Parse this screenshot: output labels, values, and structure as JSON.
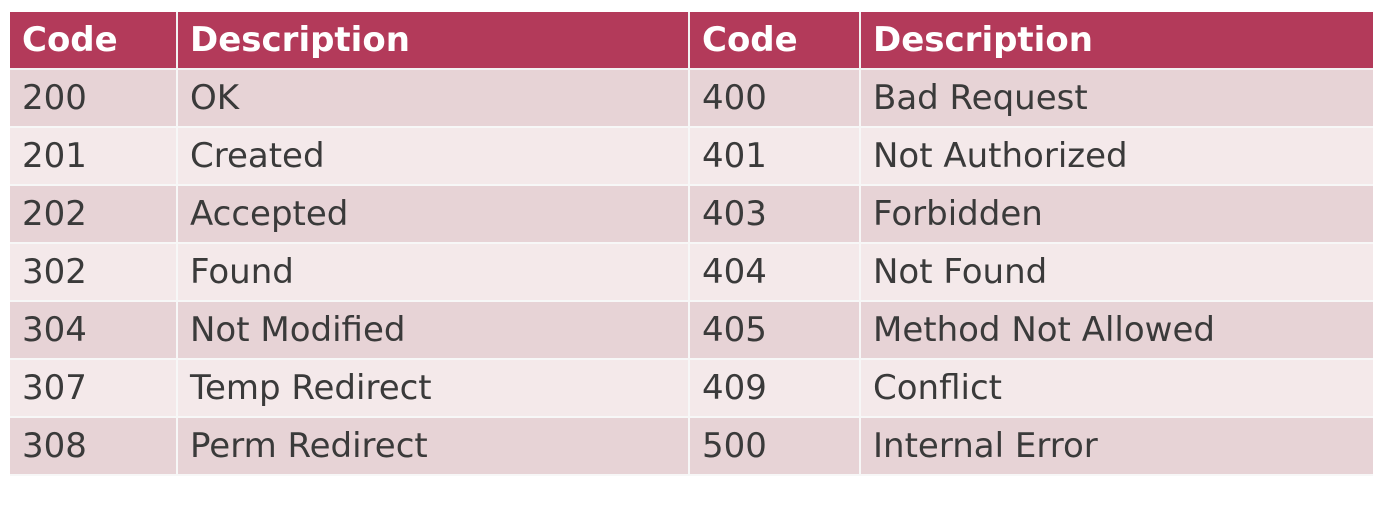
{
  "colors": {
    "header_bg": "#b33a5a",
    "header_text": "#ffffff",
    "row_odd_bg": "#e7d3d6",
    "row_even_bg": "#f4e9ea",
    "cell_text": "#3a3a3a"
  },
  "table": {
    "headers": [
      "Code",
      "Description",
      "Code",
      "Description"
    ],
    "rows": [
      [
        "200",
        "OK",
        "400",
        "Bad Request"
      ],
      [
        "201",
        "Created",
        "401",
        "Not Authorized"
      ],
      [
        "202",
        "Accepted",
        "403",
        "Forbidden"
      ],
      [
        "302",
        "Found",
        "404",
        "Not Found"
      ],
      [
        "304",
        "Not Modified",
        "405",
        "Method Not Allowed"
      ],
      [
        "307",
        "Temp Redirect",
        "409",
        "Conflict"
      ],
      [
        "308",
        "Perm Redirect",
        "500",
        "Internal Error"
      ]
    ]
  }
}
